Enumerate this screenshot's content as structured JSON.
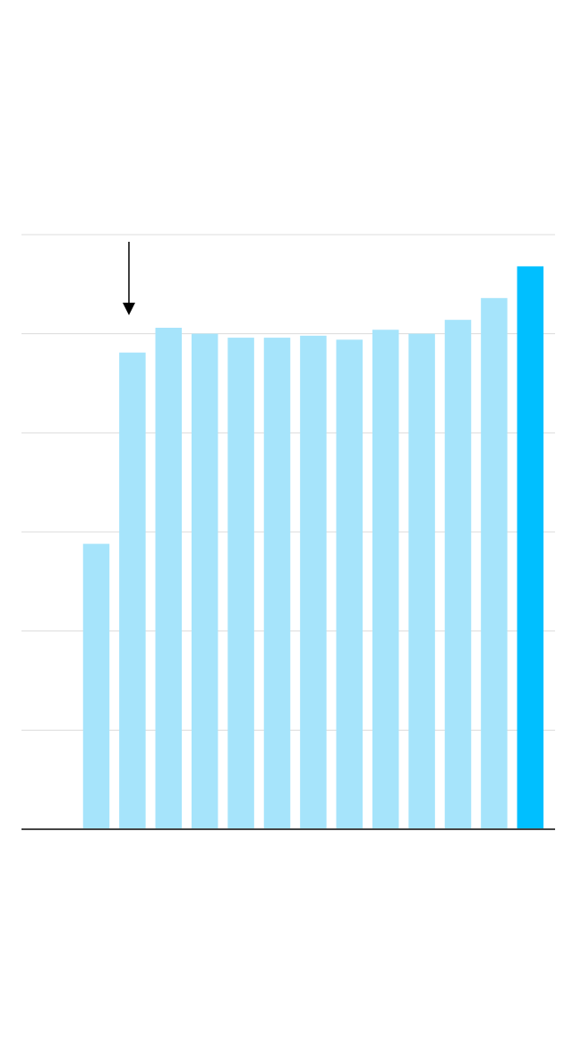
{
  "chart_data": {
    "type": "bar",
    "categories": [
      null,
      null,
      null,
      null,
      null,
      null,
      null,
      null,
      null,
      null,
      null,
      null,
      null,
      null
    ],
    "values": [
      null,
      2.88,
      4.81,
      5.06,
      5.0,
      4.96,
      4.96,
      4.98,
      4.94,
      5.04,
      5.0,
      5.14,
      5.36,
      5.68
    ],
    "colors": [
      "#a6e4fb",
      "#a6e4fb",
      "#a6e4fb",
      "#a6e4fb",
      "#a6e4fb",
      "#a6e4fb",
      "#a6e4fb",
      "#a6e4fb",
      "#a6e4fb",
      "#a6e4fb",
      "#a6e4fb",
      "#a6e4fb",
      "#a6e4fb",
      "#00bfff"
    ],
    "ylim": [
      0,
      6
    ],
    "yticks": [
      0,
      1,
      2,
      3,
      4,
      5,
      6
    ],
    "grid": true
  }
}
